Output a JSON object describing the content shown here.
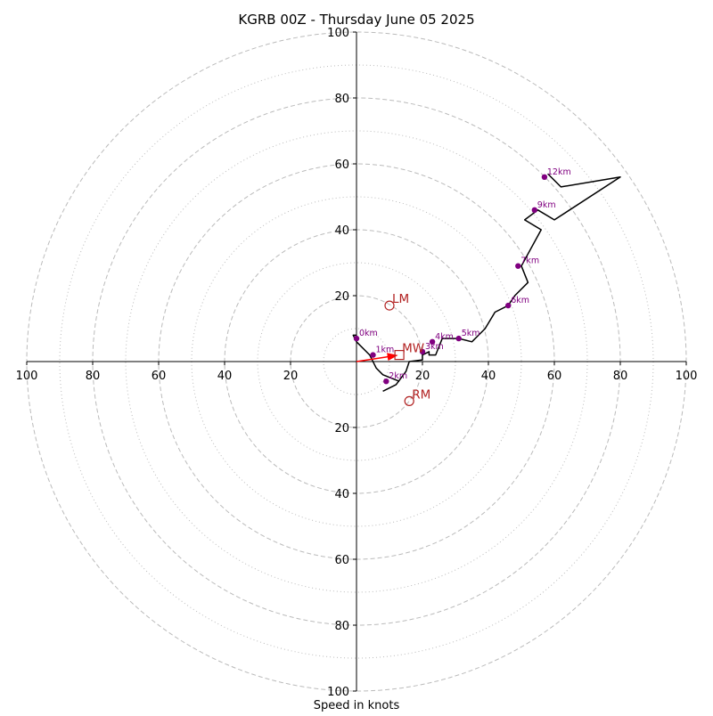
{
  "chart_data": {
    "type": "line",
    "title": "KGRB 00Z - Thursday June 05 2025",
    "xlabel": "Speed in knots",
    "ylabel": "",
    "xlim": [
      -100,
      100
    ],
    "ylim": [
      -100,
      100
    ],
    "grid": true,
    "ring_labels": [
      "20",
      "40",
      "60",
      "80",
      "100"
    ],
    "x_ticks": [
      -100,
      -80,
      -60,
      -40,
      -20,
      20,
      40,
      60,
      80,
      100
    ],
    "y_ticks": [
      -100,
      -80,
      -60,
      -40,
      -20,
      20,
      40,
      60,
      80,
      100
    ],
    "hodograph": {
      "name": "",
      "points": [
        [
          8,
          -9
        ],
        [
          12,
          -7
        ],
        [
          15,
          -3
        ],
        [
          16,
          0
        ],
        [
          20,
          0.5
        ],
        [
          20,
          2
        ],
        [
          22,
          3
        ],
        [
          22,
          2
        ],
        [
          24,
          2
        ],
        [
          26,
          7
        ],
        [
          31,
          7
        ],
        [
          35,
          6
        ],
        [
          39,
          10
        ],
        [
          42,
          15
        ],
        [
          46,
          17
        ],
        [
          48,
          20
        ],
        [
          52,
          24
        ],
        [
          50,
          29
        ],
        [
          56,
          40
        ],
        [
          51,
          43
        ],
        [
          55,
          46
        ],
        [
          60,
          43
        ],
        [
          80,
          56
        ],
        [
          62,
          53
        ],
        [
          58,
          57
        ]
      ],
      "lead": [
        [
          13,
          -6
        ],
        [
          8,
          -4
        ],
        [
          6,
          -2
        ],
        [
          4,
          2
        ],
        [
          0,
          6
        ],
        [
          -1,
          8
        ],
        [
          0,
          8
        ]
      ]
    },
    "height_labels": [
      {
        "label": "0km",
        "x": 0,
        "y": 7
      },
      {
        "label": "1km",
        "x": 5,
        "y": 2
      },
      {
        "label": "2km",
        "x": 9,
        "y": -6
      },
      {
        "label": "3km",
        "x": 20,
        "y": 3
      },
      {
        "label": "4km",
        "x": 23,
        "y": 6
      },
      {
        "label": "5km",
        "x": 31,
        "y": 7
      },
      {
        "label": "6km",
        "x": 46,
        "y": 17
      },
      {
        "label": "7km",
        "x": 49,
        "y": 29
      },
      {
        "label": "9km",
        "x": 54,
        "y": 46
      },
      {
        "label": "12km",
        "x": 57,
        "y": 56
      }
    ],
    "storm_motion": [
      {
        "label": "LM",
        "x": 10,
        "y": 17,
        "shape": "circle"
      },
      {
        "label": "MW",
        "x": 13,
        "y": 2,
        "shape": "square"
      },
      {
        "label": "RM",
        "x": 16,
        "y": -12,
        "shape": "circle"
      }
    ],
    "colors": {
      "hodograph": "#000000",
      "height_marker": "#800080",
      "storm_motion": "#b22222",
      "shear_arrow": "#ff0000",
      "grid": "#bbbbbb"
    }
  }
}
